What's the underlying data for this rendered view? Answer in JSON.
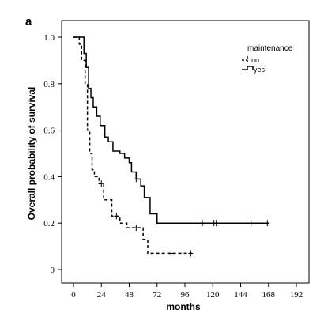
{
  "chart_data": {
    "type": "line",
    "subtype": "kaplan-meier-step",
    "panel_label": "a",
    "title": "",
    "xlabel": "months",
    "ylabel": "Overall probability of survival",
    "xlim": [
      0,
      200
    ],
    "ylim": [
      0,
      1.0
    ],
    "xticks": [
      "0",
      "24",
      "48",
      "72",
      "96",
      "120",
      "144",
      "168",
      "192"
    ],
    "xtick_values": [
      0,
      24,
      48,
      72,
      96,
      120,
      144,
      168,
      192
    ],
    "yticks": [
      "0",
      "0.2",
      "0.4",
      "0.6",
      "0.8",
      "1.0"
    ],
    "ytick_values": [
      0,
      0.2,
      0.4,
      0.6,
      0.8,
      1.0
    ],
    "grid": false,
    "legend": {
      "title": "maintenance",
      "position": "top-right",
      "entries": [
        "no",
        "yes"
      ]
    },
    "series": [
      {
        "name": "no",
        "style": "dashed",
        "color": "#000000",
        "steps": [
          [
            0,
            1.0
          ],
          [
            5,
            0.97
          ],
          [
            7,
            0.9
          ],
          [
            10,
            0.8
          ],
          [
            12,
            0.6
          ],
          [
            14,
            0.5
          ],
          [
            16,
            0.43
          ],
          [
            18,
            0.4
          ],
          [
            22,
            0.37
          ],
          [
            26,
            0.3
          ],
          [
            30,
            0.3
          ],
          [
            33,
            0.23
          ],
          [
            40,
            0.2
          ],
          [
            46,
            0.18
          ],
          [
            56,
            0.18
          ],
          [
            60,
            0.13
          ],
          [
            64,
            0.07
          ],
          [
            102,
            0.07
          ]
        ],
        "censored_x": [
          24,
          37,
          54,
          84,
          101
        ]
      },
      {
        "name": "yes",
        "style": "solid",
        "color": "#000000",
        "steps": [
          [
            0,
            1.0
          ],
          [
            7,
            1.0
          ],
          [
            9,
            0.93
          ],
          [
            11,
            0.87
          ],
          [
            13,
            0.78
          ],
          [
            15,
            0.74
          ],
          [
            17,
            0.7
          ],
          [
            20,
            0.66
          ],
          [
            23,
            0.62
          ],
          [
            27,
            0.57
          ],
          [
            30,
            0.55
          ],
          [
            34,
            0.51
          ],
          [
            40,
            0.5
          ],
          [
            44,
            0.48
          ],
          [
            48,
            0.46
          ],
          [
            50,
            0.42
          ],
          [
            54,
            0.39
          ],
          [
            58,
            0.36
          ],
          [
            61,
            0.31
          ],
          [
            64,
            0.31
          ],
          [
            66,
            0.24
          ],
          [
            70,
            0.24
          ],
          [
            72,
            0.2
          ],
          [
            168,
            0.2
          ]
        ],
        "censored_x": [
          54,
          111,
          121,
          123,
          153,
          167
        ]
      }
    ]
  }
}
